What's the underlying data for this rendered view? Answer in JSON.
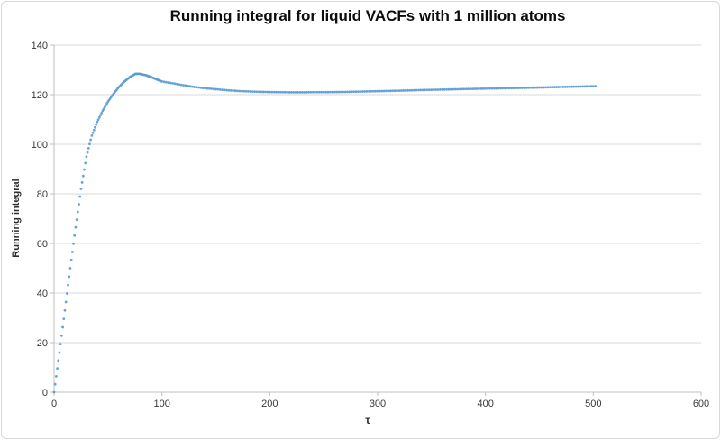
{
  "window": {
    "background": "#ffffff",
    "border_color": "#d9d9d9"
  },
  "chart_data": {
    "type": "scatter",
    "title": "Running integral for liquid VACFs with 1 million atoms",
    "xlabel": "τ",
    "ylabel": "Running integral",
    "xlim": [
      0,
      600
    ],
    "ylim": [
      0,
      140
    ],
    "x_ticks": [
      0,
      100,
      200,
      300,
      400,
      500,
      600
    ],
    "y_ticks": [
      0,
      20,
      40,
      60,
      80,
      100,
      120,
      140
    ],
    "grid": "horizontal-only",
    "legend_position": "none",
    "marker_color": "#5B9BD5",
    "gridline_color": "#d9d9d9",
    "axis_line_color": "#bfbfbf",
    "peak": {
      "tau": 77,
      "value": 128.4
    },
    "plateau_minimum": {
      "tau": 225,
      "value": 121.0
    },
    "final_point": {
      "tau": 502,
      "value": 123.4
    },
    "series": [
      {
        "name": "Running integral",
        "points": [
          [
            0,
            0
          ],
          [
            1,
            3.2
          ],
          [
            2,
            6.4
          ],
          [
            3,
            9.6
          ],
          [
            4,
            12.8
          ],
          [
            5,
            16
          ],
          [
            6,
            19.4
          ],
          [
            7,
            22.8
          ],
          [
            8,
            26.2
          ],
          [
            9,
            29.6
          ],
          [
            10,
            33
          ],
          [
            11,
            36.4
          ],
          [
            12,
            39.8
          ],
          [
            13,
            43.2
          ],
          [
            14,
            46.6
          ],
          [
            15,
            50
          ],
          [
            16,
            53.3
          ],
          [
            17,
            56.6
          ],
          [
            18,
            59.9
          ],
          [
            19,
            63.2
          ],
          [
            20,
            66.5
          ],
          [
            21,
            69.6
          ],
          [
            22,
            72.7
          ],
          [
            23,
            75.8
          ],
          [
            24,
            78.9
          ],
          [
            25,
            82
          ],
          [
            26,
            84.6
          ],
          [
            27,
            87.2
          ],
          [
            28,
            89.8
          ],
          [
            29,
            92.4
          ],
          [
            30,
            95
          ],
          [
            31,
            96.7
          ],
          [
            32,
            98.4
          ],
          [
            33,
            100.1
          ],
          [
            34,
            101.8
          ],
          [
            35,
            103.5
          ],
          [
            36,
            104.6
          ],
          [
            37,
            105.7
          ],
          [
            38,
            106.8
          ],
          [
            39,
            107.9
          ],
          [
            40,
            109
          ],
          [
            41,
            109.9
          ],
          [
            42,
            110.8
          ],
          [
            43,
            111.7
          ],
          [
            44,
            112.6
          ],
          [
            45,
            113.5
          ],
          [
            46,
            114.2
          ],
          [
            47,
            115
          ],
          [
            48,
            115.7
          ],
          [
            49,
            116.5
          ],
          [
            50,
            117.2
          ],
          [
            51,
            117.8
          ],
          [
            52,
            118.4
          ],
          [
            53,
            119.1
          ],
          [
            54,
            119.7
          ],
          [
            55,
            120.3
          ],
          [
            56,
            120.8
          ],
          [
            57,
            121.4
          ],
          [
            58,
            121.9
          ],
          [
            59,
            122.5
          ],
          [
            60,
            123
          ],
          [
            61,
            123.4
          ],
          [
            62,
            123.9
          ],
          [
            63,
            124.3
          ],
          [
            64,
            124.8
          ],
          [
            65,
            125.2
          ],
          [
            66,
            125.6
          ],
          [
            67,
            125.9
          ],
          [
            68,
            126.3
          ],
          [
            69,
            126.6
          ],
          [
            70,
            127
          ],
          [
            71,
            127.3
          ],
          [
            72,
            127.5
          ],
          [
            73,
            127.8
          ],
          [
            74,
            128
          ],
          [
            75,
            128.3
          ],
          [
            76,
            128.38
          ],
          [
            77,
            128.42
          ],
          [
            78,
            128.42
          ],
          [
            79,
            128.4
          ],
          [
            80,
            128.35
          ],
          [
            81,
            128.25
          ],
          [
            82,
            128.15
          ],
          [
            83,
            128.05
          ],
          [
            84,
            127.95
          ],
          [
            85,
            127.85
          ],
          [
            86,
            127.7
          ],
          [
            87,
            127.55
          ],
          [
            88,
            127.4
          ],
          [
            89,
            127.25
          ],
          [
            90,
            127.1
          ],
          [
            91,
            126.92
          ],
          [
            92,
            126.74
          ],
          [
            93,
            126.56
          ],
          [
            94,
            126.38
          ],
          [
            95,
            126.2
          ],
          [
            96,
            126.02
          ],
          [
            97,
            125.84
          ],
          [
            98,
            125.66
          ],
          [
            99,
            125.48
          ],
          [
            100,
            125.3
          ],
          [
            102,
            125.16
          ],
          [
            104,
            125.02
          ],
          [
            106,
            124.88
          ],
          [
            108,
            124.74
          ],
          [
            110,
            124.6
          ],
          [
            112,
            124.44
          ],
          [
            114,
            124.28
          ],
          [
            116,
            124.12
          ],
          [
            118,
            123.96
          ],
          [
            120,
            123.8
          ],
          [
            122,
            123.66
          ],
          [
            124,
            123.52
          ],
          [
            126,
            123.38
          ],
          [
            128,
            123.24
          ],
          [
            130,
            123.1
          ],
          [
            132,
            123
          ],
          [
            134,
            122.9
          ],
          [
            136,
            122.8
          ],
          [
            138,
            122.7
          ],
          [
            140,
            122.6
          ],
          [
            142,
            122.52
          ],
          [
            144,
            122.44
          ],
          [
            146,
            122.36
          ],
          [
            148,
            122.28
          ],
          [
            150,
            122.2
          ],
          [
            152,
            122.12
          ],
          [
            154,
            122.04
          ],
          [
            156,
            121.96
          ],
          [
            158,
            121.88
          ],
          [
            160,
            121.8
          ],
          [
            162,
            121.74
          ],
          [
            164,
            121.68
          ],
          [
            166,
            121.62
          ],
          [
            168,
            121.56
          ],
          [
            170,
            121.5
          ],
          [
            172,
            121.46
          ],
          [
            174,
            121.42
          ],
          [
            176,
            121.38
          ],
          [
            178,
            121.34
          ],
          [
            180,
            121.3
          ],
          [
            182,
            121.27
          ],
          [
            184,
            121.24
          ],
          [
            186,
            121.21
          ],
          [
            188,
            121.18
          ],
          [
            190,
            121.15
          ],
          [
            192,
            121.13
          ],
          [
            194,
            121.11
          ],
          [
            196,
            121.09
          ],
          [
            198,
            121.07
          ],
          [
            200,
            121.05
          ],
          [
            202,
            121.04
          ],
          [
            204,
            121.03
          ],
          [
            206,
            121.02
          ],
          [
            208,
            121.01
          ],
          [
            210,
            121
          ],
          [
            212,
            120.99
          ],
          [
            214,
            120.98
          ],
          [
            216,
            120.97
          ],
          [
            218,
            120.96
          ],
          [
            220,
            120.95
          ],
          [
            222,
            120.95
          ],
          [
            224,
            120.95
          ],
          [
            226,
            120.95
          ],
          [
            228,
            120.95
          ],
          [
            230,
            120.95
          ],
          [
            232,
            120.96
          ],
          [
            234,
            120.97
          ],
          [
            236,
            120.98
          ],
          [
            238,
            120.99
          ],
          [
            240,
            121
          ],
          [
            242,
            121
          ],
          [
            244,
            121
          ],
          [
            246,
            121
          ],
          [
            248,
            121
          ],
          [
            250,
            121
          ],
          [
            252,
            121.01
          ],
          [
            254,
            121.02
          ],
          [
            256,
            121.03
          ],
          [
            258,
            121.04
          ],
          [
            260,
            121.05
          ],
          [
            262,
            121.06
          ],
          [
            264,
            121.07
          ],
          [
            266,
            121.08
          ],
          [
            268,
            121.09
          ],
          [
            270,
            121.1
          ],
          [
            272,
            121.12
          ],
          [
            274,
            121.14
          ],
          [
            276,
            121.16
          ],
          [
            278,
            121.18
          ],
          [
            280,
            121.2
          ],
          [
            282,
            121.22
          ],
          [
            284,
            121.24
          ],
          [
            286,
            121.26
          ],
          [
            288,
            121.28
          ],
          [
            290,
            121.3
          ],
          [
            292,
            121.32
          ],
          [
            294,
            121.34
          ],
          [
            296,
            121.36
          ],
          [
            298,
            121.38
          ],
          [
            300,
            121.4
          ],
          [
            302,
            121.42
          ],
          [
            304,
            121.44
          ],
          [
            306,
            121.46
          ],
          [
            308,
            121.48
          ],
          [
            310,
            121.5
          ],
          [
            312,
            121.52
          ],
          [
            314,
            121.54
          ],
          [
            316,
            121.56
          ],
          [
            318,
            121.58
          ],
          [
            320,
            121.6
          ],
          [
            322,
            121.62
          ],
          [
            324,
            121.65
          ],
          [
            326,
            121.67
          ],
          [
            328,
            121.7
          ],
          [
            330,
            121.72
          ],
          [
            332,
            121.75
          ],
          [
            334,
            121.77
          ],
          [
            336,
            121.8
          ],
          [
            338,
            121.82
          ],
          [
            340,
            121.85
          ],
          [
            342,
            121.87
          ],
          [
            344,
            121.89
          ],
          [
            346,
            121.91
          ],
          [
            348,
            121.93
          ],
          [
            350,
            121.95
          ],
          [
            352,
            121.97
          ],
          [
            354,
            121.99
          ],
          [
            356,
            122.01
          ],
          [
            358,
            122.03
          ],
          [
            360,
            122.05
          ],
          [
            362,
            122.07
          ],
          [
            364,
            122.09
          ],
          [
            366,
            122.11
          ],
          [
            368,
            122.13
          ],
          [
            370,
            122.15
          ],
          [
            372,
            122.17
          ],
          [
            374,
            122.19
          ],
          [
            376,
            122.21
          ],
          [
            378,
            122.23
          ],
          [
            380,
            122.25
          ],
          [
            382,
            122.27
          ],
          [
            384,
            122.29
          ],
          [
            386,
            122.31
          ],
          [
            388,
            122.33
          ],
          [
            390,
            122.35
          ],
          [
            392,
            122.37
          ],
          [
            394,
            122.39
          ],
          [
            396,
            122.41
          ],
          [
            398,
            122.43
          ],
          [
            400,
            122.45
          ],
          [
            402,
            122.46
          ],
          [
            404,
            122.48
          ],
          [
            406,
            122.49
          ],
          [
            408,
            122.51
          ],
          [
            410,
            122.52
          ],
          [
            412,
            122.54
          ],
          [
            414,
            122.55
          ],
          [
            416,
            122.57
          ],
          [
            418,
            122.58
          ],
          [
            420,
            122.6
          ],
          [
            422,
            122.62
          ],
          [
            424,
            122.64
          ],
          [
            426,
            122.66
          ],
          [
            428,
            122.68
          ],
          [
            430,
            122.7
          ],
          [
            432,
            122.72
          ],
          [
            434,
            122.74
          ],
          [
            436,
            122.76
          ],
          [
            438,
            122.78
          ],
          [
            440,
            122.8
          ],
          [
            442,
            122.82
          ],
          [
            444,
            122.84
          ],
          [
            446,
            122.86
          ],
          [
            448,
            122.88
          ],
          [
            450,
            122.9
          ],
          [
            452,
            122.92
          ],
          [
            454,
            122.94
          ],
          [
            456,
            122.96
          ],
          [
            458,
            122.98
          ],
          [
            460,
            123
          ],
          [
            462,
            123.02
          ],
          [
            464,
            123.04
          ],
          [
            466,
            123.06
          ],
          [
            468,
            123.08
          ],
          [
            470,
            123.1
          ],
          [
            472,
            123.12
          ],
          [
            474,
            123.14
          ],
          [
            476,
            123.16
          ],
          [
            478,
            123.18
          ],
          [
            480,
            123.2
          ],
          [
            482,
            123.22
          ],
          [
            484,
            123.24
          ],
          [
            486,
            123.26
          ],
          [
            488,
            123.28
          ],
          [
            490,
            123.3
          ],
          [
            492,
            123.32
          ],
          [
            494,
            123.34
          ],
          [
            496,
            123.36
          ],
          [
            498,
            123.38
          ],
          [
            500,
            123.4
          ],
          [
            502,
            123.41
          ]
        ]
      }
    ]
  }
}
